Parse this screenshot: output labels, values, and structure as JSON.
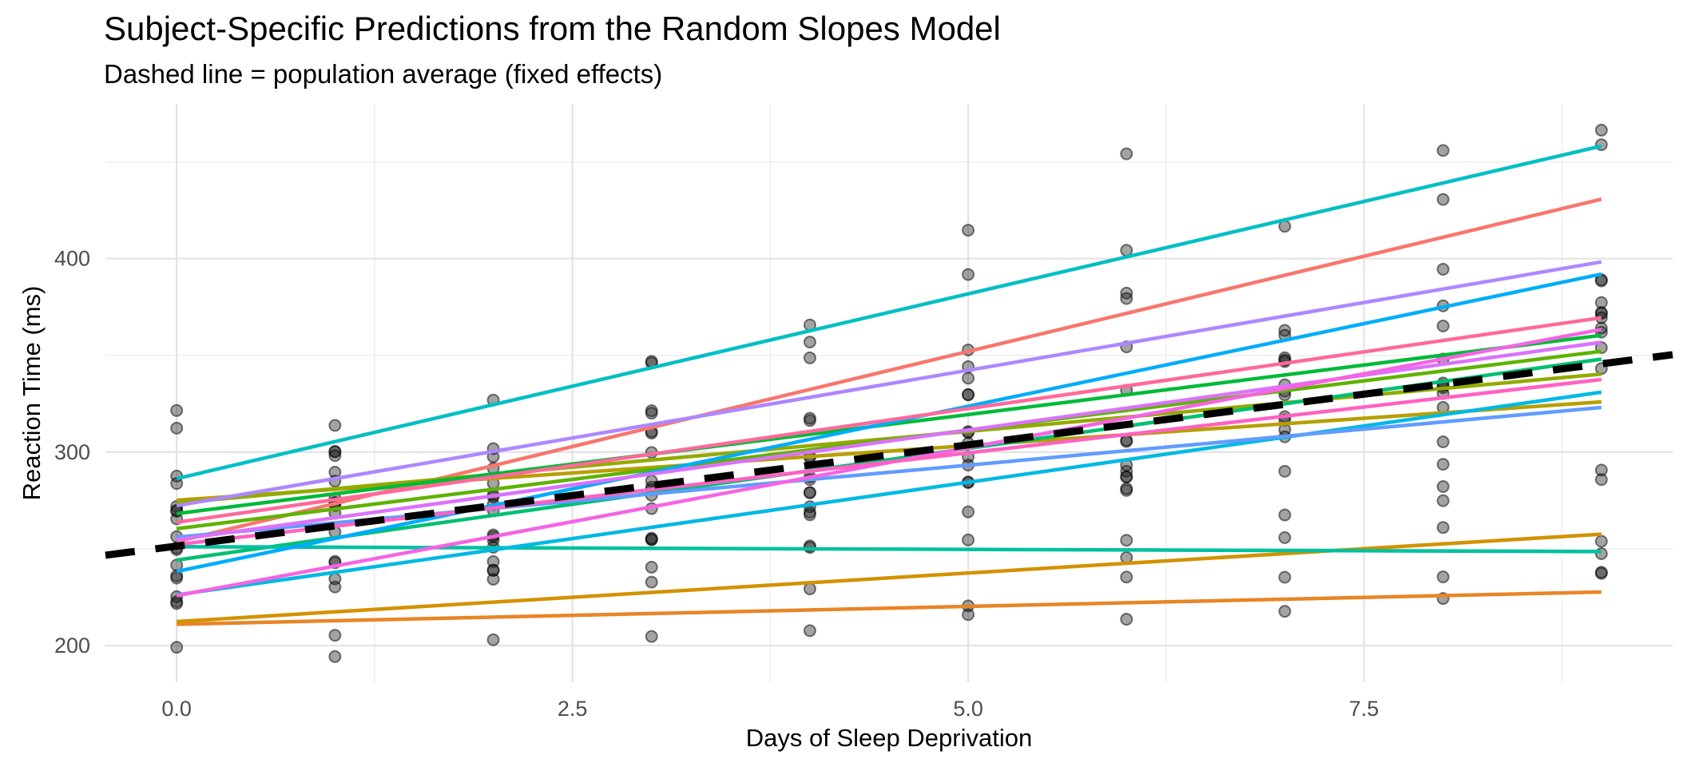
{
  "title": "Subject-Specific Predictions from the Random Slopes Model",
  "subtitle": "Dashed line = population average (fixed effects)",
  "colors": {
    "background": "#FFFFFF",
    "grid_major": "#E3E3E3",
    "grid_minor": "#EFEFEF",
    "tick_label": "#4D4D4D",
    "axis_title": "#000000",
    "point": "#1A1A1A",
    "population_line": "#000000"
  },
  "chart_data": {
    "type": "line",
    "title": "Subject-Specific Predictions from the Random Slopes Model",
    "subtitle": "Dashed line = population average (fixed effects)",
    "xlabel": "Days of Sleep Deprivation",
    "ylabel": "Reaction Time (ms)",
    "xlim": [
      -0.45,
      9.45
    ],
    "ylim": [
      181,
      480
    ],
    "x_ticks": [
      0,
      2.5,
      5,
      7.5
    ],
    "x_tick_labels": [
      "0.0",
      "2.5",
      "5.0",
      "7.5"
    ],
    "x_minor_ticks": [
      1.25,
      3.75,
      6.25,
      8.75
    ],
    "y_ticks": [
      200,
      300,
      400
    ],
    "y_tick_labels": [
      "200",
      "300",
      "400"
    ],
    "y_minor_ticks": [
      250,
      350,
      450
    ],
    "grid": true,
    "legend": "none",
    "days": [
      0,
      1,
      2,
      3,
      4,
      5,
      6,
      7,
      8,
      9
    ],
    "population_line": {
      "label": "population average (fixed effects)",
      "intercept": 251.4,
      "slope": 10.47,
      "style": "dashed"
    },
    "subjects": [
      {
        "id": "308",
        "color": "#F8766D",
        "intercept": 253.7,
        "slope": 19.67,
        "reaction_by_day": [
          249.6,
          258.7,
          250.8,
          321.4,
          356.9,
          414.7,
          382.2,
          290.1,
          430.6,
          466.4
        ]
      },
      {
        "id": "309",
        "color": "#E88526",
        "intercept": 211.0,
        "slope": 1.85,
        "reaction_by_day": [
          222.7,
          205.3,
          203.0,
          204.7,
          207.7,
          216.0,
          213.6,
          217.7,
          224.3,
          237.3
        ]
      },
      {
        "id": "310",
        "color": "#D39200",
        "intercept": 212.4,
        "slope": 5.02,
        "reaction_by_day": [
          199.1,
          194.3,
          234.3,
          232.8,
          229.3,
          220.5,
          235.4,
          255.8,
          261.0,
          247.5
        ]
      },
      {
        "id": "330",
        "color": "#B79F00",
        "intercept": 275.1,
        "slope": 5.65,
        "reaction_by_day": [
          321.5,
          300.4,
          283.9,
          285.1,
          285.8,
          297.6,
          280.2,
          318.3,
          305.3,
          354.0
        ]
      },
      {
        "id": "331",
        "color": "#93AA00",
        "intercept": 273.7,
        "slope": 7.4,
        "reaction_by_day": [
          287.6,
          285.0,
          301.8,
          320.1,
          316.3,
          293.3,
          290.1,
          334.8,
          293.7,
          371.6
        ]
      },
      {
        "id": "332",
        "color": "#5EB300",
        "intercept": 260.4,
        "slope": 10.19,
        "reaction_by_day": [
          234.9,
          242.8,
          273.0,
          309.8,
          317.5,
          310.0,
          454.2,
          346.8,
          330.3,
          253.9
        ]
      },
      {
        "id": "333",
        "color": "#00BA38",
        "intercept": 268.2,
        "slope": 10.24,
        "reaction_by_day": [
          283.8,
          289.6,
          276.8,
          299.8,
          297.2,
          338.2,
          332.0,
          348.8,
          333.4,
          362.0
        ]
      },
      {
        "id": "334",
        "color": "#00BF74",
        "intercept": 244.2,
        "slope": 11.54,
        "reaction_by_day": [
          265.5,
          276.2,
          243.4,
          254.7,
          279.0,
          284.2,
          305.5,
          331.5,
          335.7,
          377.3
        ]
      },
      {
        "id": "335",
        "color": "#00C19F",
        "intercept": 251.1,
        "slope": -0.28,
        "reaction_by_day": [
          241.6,
          273.9,
          254.5,
          270.8,
          251.5,
          254.6,
          245.5,
          235.3,
          235.5,
          237.9
        ]
      },
      {
        "id": "337",
        "color": "#00BFC4",
        "intercept": 286.3,
        "slope": 19.1,
        "reaction_by_day": [
          312.4,
          313.8,
          291.6,
          346.1,
          365.7,
          391.8,
          404.3,
          416.7,
          455.9,
          458.9
        ]
      },
      {
        "id": "349",
        "color": "#00B9E3",
        "intercept": 226.2,
        "slope": 11.64,
        "reaction_by_day": [
          236.1,
          230.3,
          238.9,
          254.9,
          250.7,
          269.1,
          254.4,
          267.5,
          274.9,
          290.7
        ]
      },
      {
        "id": "350",
        "color": "#00ADFA",
        "intercept": 238.3,
        "slope": 17.08,
        "reaction_by_day": [
          256.3,
          243.5,
          256.2,
          255.5,
          268.9,
          329.7,
          379.4,
          362.9,
          394.5,
          389.1
        ]
      },
      {
        "id": "351",
        "color": "#619CFF",
        "intercept": 256.0,
        "slope": 7.45,
        "reaction_by_day": [
          250.5,
          300.1,
          269.9,
          280.6,
          271.8,
          304.6,
          287.2,
          311.6,
          282.2,
          285.8
        ]
      },
      {
        "id": "352",
        "color": "#AE87FF",
        "intercept": 272.3,
        "slope": 14.0,
        "reaction_by_day": [
          221.7,
          298.2,
          326.9,
          346.9,
          348.7,
          352.8,
          354.4,
          360.4,
          375.6,
          388.5
        ]
      },
      {
        "id": "369",
        "color": "#DB72FB",
        "intercept": 254.7,
        "slope": 11.34,
        "reaction_by_day": [
          271.9,
          268.4,
          257.2,
          277.7,
          298.0,
          310.6,
          287.2,
          329.6,
          334.5,
          343.2
        ]
      },
      {
        "id": "370",
        "color": "#F564E3",
        "intercept": 225.8,
        "slope": 15.29,
        "reaction_by_day": [
          225.3,
          234.5,
          238.9,
          240.5,
          267.6,
          344.2,
          281.2,
          347.6,
          365.2,
          372.2
        ]
      },
      {
        "id": "371",
        "color": "#FF61C3",
        "intercept": 252.2,
        "slope": 9.48,
        "reaction_by_day": [
          269.4,
          273.5,
          297.6,
          310.6,
          287.2,
          329.6,
          293.3,
          316.6,
          348.1,
          369.5
        ]
      },
      {
        "id": "372",
        "color": "#FF699C",
        "intercept": 263.7,
        "slope": 11.75,
        "reaction_by_day": [
          269.9,
          272.4,
          277.9,
          281.8,
          279.1,
          284.6,
          306.1,
          307.9,
          323.1,
          364.1
        ]
      }
    ]
  }
}
